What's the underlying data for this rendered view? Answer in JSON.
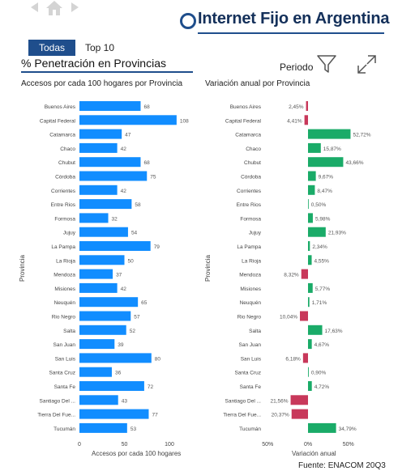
{
  "header": {
    "title": "Internet Fijo en Argentina",
    "home_icon": "home-icon",
    "back_icon": "back-arrow-icon",
    "forward_icon": "forward-arrow-icon"
  },
  "tabs": [
    {
      "label": "Todas",
      "active": true
    },
    {
      "label": "Top 10",
      "active": false
    }
  ],
  "subtitle": "% Penetración en Provincias",
  "filter": {
    "label": "Periodo",
    "filter_icon": "filter-icon",
    "expand_icon": "expand-icon"
  },
  "colors": {
    "accent": "#1f4e8c",
    "bar_blue": "#118dff",
    "positive": "#1aab68",
    "negative": "#c8385a"
  },
  "chart_data": [
    {
      "type": "bar",
      "orientation": "horizontal",
      "title": "Accesos por cada 100 hogares por Provincia",
      "xlabel": "Accesos por cada 100 hogares",
      "ylabel": "Provincia",
      "xlim": [
        0,
        110
      ],
      "xticks": [
        "0",
        "50",
        "100"
      ],
      "grid": false,
      "categories": [
        "Buenos Aires",
        "Capital Federal",
        "Catamarca",
        "Chaco",
        "Chubut",
        "Córdoba",
        "Corrientes",
        "Entre Rios",
        "Formosa",
        "Jujuy",
        "La Pampa",
        "La Rioja",
        "Mendoza",
        "Misiones",
        "Neuquén",
        "Rio Negro",
        "Salta",
        "San Juan",
        "San Luis",
        "Santa Cruz",
        "Santa Fe",
        "Santiago Del ...",
        "Tierra Del Fue...",
        "Tucumán"
      ],
      "values": [
        68,
        108,
        47,
        42,
        68,
        75,
        42,
        58,
        32,
        54,
        79,
        50,
        37,
        42,
        65,
        57,
        52,
        39,
        80,
        36,
        72,
        43,
        77,
        53
      ]
    },
    {
      "type": "bar",
      "orientation": "horizontal",
      "title": "Variación anual por Provincia",
      "xlabel": "Variación anual",
      "ylabel": "Provincia",
      "xlim": [
        -50,
        50
      ],
      "xticks": [
        "50%",
        "0%",
        "50%"
      ],
      "grid": false,
      "categories": [
        "Buenos Aires",
        "Capital Federal",
        "Catamarca",
        "Chaco",
        "Chubut",
        "Córdoba",
        "Corrientes",
        "Entre Rios",
        "Formosa",
        "Jujuy",
        "La Pampa",
        "La Rioja",
        "Mendoza",
        "Misiones",
        "Neuquén",
        "Rio Negro",
        "Salta",
        "San Juan",
        "San Luis",
        "Santa Cruz",
        "Santa Fe",
        "Santiago Del ...",
        "Tierra Del Fue...",
        "Tucumán"
      ],
      "values": [
        -2.45,
        -4.41,
        52.72,
        15.87,
        43.66,
        9.67,
        8.47,
        0.5,
        5.98,
        21.93,
        2.34,
        4.55,
        -8.32,
        5.77,
        1.71,
        -10.04,
        17.63,
        4.67,
        -6.18,
        0.9,
        4.72,
        -21.56,
        -20.37,
        34.79
      ],
      "labels": [
        "2,45%",
        "4,41%",
        "52,72%",
        "15,87%",
        "43,66%",
        "9,67%",
        "8,47%",
        "0,50%",
        "5,98%",
        "21,93%",
        "2,34%",
        "4,55%",
        "8,32%",
        "5,77%",
        "1,71%",
        "10,04%",
        "17,63%",
        "4,67%",
        "6,18%",
        "0,90%",
        "4,72%",
        "21,56%",
        "20,37%",
        "34,79%"
      ]
    }
  ],
  "footer": {
    "source": "Fuente: ENACOM 20Q3"
  }
}
